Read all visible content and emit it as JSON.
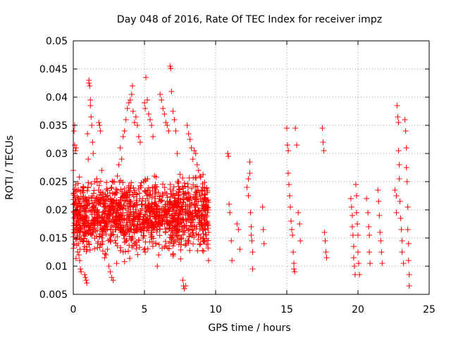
{
  "chart_data": {
    "type": "scatter",
    "title": "Day 048 of 2016, Rate Of TEC Index for receiver impz",
    "xlabel": "GPS time / hours",
    "ylabel": "ROTI / TECUs",
    "xlim": [
      0,
      25
    ],
    "ylim": [
      0.005,
      0.05
    ],
    "xticks": [
      "0",
      "5",
      "10",
      "15",
      "20",
      "25"
    ],
    "yticks": [
      "0.005",
      "0.01",
      "0.015",
      "0.02",
      "0.025",
      "0.03",
      "0.035",
      "0.04",
      "0.045",
      "0.05"
    ],
    "grid": true,
    "marker": "+",
    "color": "#ff0000",
    "series": [
      {
        "name": "ROTI",
        "points": [
          [
            0.0,
            0.027
          ],
          [
            0.05,
            0.034
          ],
          [
            0.1,
            0.035
          ],
          [
            0.1,
            0.0315
          ],
          [
            0.15,
            0.0305
          ],
          [
            0.2,
            0.031
          ],
          [
            0.2,
            0.02
          ],
          [
            0.25,
            0.018
          ],
          [
            0.3,
            0.0155
          ],
          [
            0.35,
            0.014
          ],
          [
            0.4,
            0.012
          ],
          [
            0.45,
            0.011
          ],
          [
            0.5,
            0.0095
          ],
          [
            0.55,
            0.009
          ],
          [
            0.6,
            0.02
          ],
          [
            0.65,
            0.022
          ],
          [
            0.7,
            0.024
          ],
          [
            0.75,
            0.013
          ],
          [
            0.8,
            0.0085
          ],
          [
            0.85,
            0.008
          ],
          [
            0.9,
            0.0075
          ],
          [
            0.95,
            0.007
          ],
          [
            1.0,
            0.0335
          ],
          [
            1.05,
            0.029
          ],
          [
            1.1,
            0.043
          ],
          [
            1.1,
            0.0425
          ],
          [
            1.15,
            0.042
          ],
          [
            1.2,
            0.0395
          ],
          [
            1.2,
            0.0385
          ],
          [
            1.25,
            0.0365
          ],
          [
            1.3,
            0.035
          ],
          [
            1.35,
            0.032
          ],
          [
            1.4,
            0.03
          ],
          [
            1.5,
            0.025
          ],
          [
            1.6,
            0.022
          ],
          [
            1.7,
            0.02
          ],
          [
            1.8,
            0.0355
          ],
          [
            1.85,
            0.035
          ],
          [
            1.9,
            0.034
          ],
          [
            2.0,
            0.027
          ],
          [
            2.1,
            0.022
          ],
          [
            2.2,
            0.0115
          ],
          [
            2.3,
            0.012
          ],
          [
            2.4,
            0.013
          ],
          [
            2.5,
            0.01
          ],
          [
            2.6,
            0.009
          ],
          [
            2.7,
            0.008
          ],
          [
            2.8,
            0.0075
          ],
          [
            2.9,
            0.02
          ],
          [
            3.0,
            0.023
          ],
          [
            3.1,
            0.026
          ],
          [
            3.2,
            0.028
          ],
          [
            3.3,
            0.031
          ],
          [
            3.4,
            0.029
          ],
          [
            3.5,
            0.033
          ],
          [
            3.6,
            0.034
          ],
          [
            3.7,
            0.036
          ],
          [
            3.8,
            0.038
          ],
          [
            3.9,
            0.039
          ],
          [
            4.0,
            0.0395
          ],
          [
            4.1,
            0.0405
          ],
          [
            4.15,
            0.042
          ],
          [
            4.2,
            0.0375
          ],
          [
            4.3,
            0.0355
          ],
          [
            4.4,
            0.0365
          ],
          [
            4.5,
            0.035
          ],
          [
            4.6,
            0.033
          ],
          [
            4.7,
            0.032
          ],
          [
            4.8,
            0.021
          ],
          [
            4.9,
            0.015
          ],
          [
            5.0,
            0.039
          ],
          [
            5.05,
            0.038
          ],
          [
            5.1,
            0.0435
          ],
          [
            5.2,
            0.0395
          ],
          [
            5.3,
            0.037
          ],
          [
            5.4,
            0.036
          ],
          [
            5.5,
            0.035
          ],
          [
            5.6,
            0.033
          ],
          [
            5.7,
            0.026
          ],
          [
            5.8,
            0.014
          ],
          [
            5.9,
            0.01
          ],
          [
            6.0,
            0.012
          ],
          [
            6.1,
            0.0405
          ],
          [
            6.2,
            0.0395
          ],
          [
            6.3,
            0.038
          ],
          [
            6.4,
            0.037
          ],
          [
            6.5,
            0.0355
          ],
          [
            6.6,
            0.035
          ],
          [
            6.7,
            0.034
          ],
          [
            6.8,
            0.0455
          ],
          [
            6.85,
            0.0451
          ],
          [
            6.9,
            0.041
          ],
          [
            7.0,
            0.0375
          ],
          [
            7.1,
            0.036
          ],
          [
            7.2,
            0.034
          ],
          [
            7.3,
            0.03
          ],
          [
            7.4,
            0.025
          ],
          [
            7.5,
            0.02
          ],
          [
            7.6,
            0.015
          ],
          [
            7.7,
            0.0075
          ],
          [
            7.75,
            0.0065
          ],
          [
            7.8,
            0.006
          ],
          [
            7.9,
            0.0065
          ],
          [
            8.0,
            0.035
          ],
          [
            8.1,
            0.0335
          ],
          [
            8.2,
            0.0325
          ],
          [
            8.3,
            0.031
          ],
          [
            8.4,
            0.029
          ],
          [
            8.5,
            0.0305
          ],
          [
            8.6,
            0.03
          ],
          [
            8.7,
            0.028
          ],
          [
            8.8,
            0.027
          ],
          [
            8.9,
            0.026
          ],
          [
            9.0,
            0.0235
          ],
          [
            9.1,
            0.024
          ],
          [
            9.2,
            0.022
          ],
          [
            9.3,
            0.02
          ],
          [
            9.4,
            0.018
          ],
          [
            9.5,
            0.016
          ],
          [
            9.5,
            0.011
          ],
          [
            10.85,
            0.03
          ],
          [
            10.9,
            0.0295
          ],
          [
            10.95,
            0.021
          ],
          [
            11.0,
            0.0195
          ],
          [
            11.1,
            0.0145
          ],
          [
            11.15,
            0.011
          ],
          [
            11.5,
            0.0175
          ],
          [
            11.6,
            0.0165
          ],
          [
            11.7,
            0.013
          ],
          [
            12.2,
            0.024
          ],
          [
            12.3,
            0.0255
          ],
          [
            12.3,
            0.0225
          ],
          [
            12.4,
            0.0285
          ],
          [
            12.4,
            0.0265
          ],
          [
            12.45,
            0.0195
          ],
          [
            12.5,
            0.017
          ],
          [
            12.5,
            0.0155
          ],
          [
            12.55,
            0.0145
          ],
          [
            12.6,
            0.0125
          ],
          [
            12.6,
            0.0095
          ],
          [
            13.3,
            0.0205
          ],
          [
            13.35,
            0.0165
          ],
          [
            13.4,
            0.014
          ],
          [
            15.0,
            0.0345
          ],
          [
            15.05,
            0.0315
          ],
          [
            15.1,
            0.0305
          ],
          [
            15.1,
            0.0265
          ],
          [
            15.15,
            0.0245
          ],
          [
            15.2,
            0.0225
          ],
          [
            15.25,
            0.0205
          ],
          [
            15.3,
            0.018
          ],
          [
            15.35,
            0.0165
          ],
          [
            15.4,
            0.0155
          ],
          [
            15.45,
            0.0125
          ],
          [
            15.5,
            0.0105
          ],
          [
            15.5,
            0.0095
          ],
          [
            15.55,
            0.009
          ],
          [
            15.6,
            0.0345
          ],
          [
            15.7,
            0.0315
          ],
          [
            15.8,
            0.0195
          ],
          [
            15.9,
            0.0175
          ],
          [
            15.95,
            0.0145
          ],
          [
            17.5,
            0.0345
          ],
          [
            17.55,
            0.032
          ],
          [
            17.6,
            0.0305
          ],
          [
            17.65,
            0.016
          ],
          [
            17.7,
            0.0145
          ],
          [
            17.75,
            0.0125
          ],
          [
            17.8,
            0.0115
          ],
          [
            19.5,
            0.022
          ],
          [
            19.55,
            0.0205
          ],
          [
            19.6,
            0.019
          ],
          [
            19.6,
            0.017
          ],
          [
            19.65,
            0.0155
          ],
          [
            19.7,
            0.0135
          ],
          [
            19.7,
            0.0115
          ],
          [
            19.75,
            0.01
          ],
          [
            19.8,
            0.0085
          ],
          [
            19.85,
            0.0245
          ],
          [
            19.9,
            0.0225
          ],
          [
            19.9,
            0.0195
          ],
          [
            19.95,
            0.0175
          ],
          [
            20.0,
            0.0155
          ],
          [
            20.0,
            0.0125
          ],
          [
            20.05,
            0.0105
          ],
          [
            20.1,
            0.0085
          ],
          [
            20.6,
            0.022
          ],
          [
            20.7,
            0.0195
          ],
          [
            20.75,
            0.017
          ],
          [
            20.8,
            0.0155
          ],
          [
            20.8,
            0.0125
          ],
          [
            20.85,
            0.0105
          ],
          [
            21.4,
            0.0235
          ],
          [
            21.45,
            0.0215
          ],
          [
            21.5,
            0.019
          ],
          [
            21.55,
            0.016
          ],
          [
            21.6,
            0.0145
          ],
          [
            21.65,
            0.0125
          ],
          [
            21.7,
            0.0105
          ],
          [
            22.6,
            0.0235
          ],
          [
            22.7,
            0.0225
          ],
          [
            22.7,
            0.0195
          ],
          [
            22.75,
            0.0385
          ],
          [
            22.8,
            0.0365
          ],
          [
            22.85,
            0.0355
          ],
          [
            22.85,
            0.0305
          ],
          [
            22.9,
            0.028
          ],
          [
            22.9,
            0.0255
          ],
          [
            22.95,
            0.0215
          ],
          [
            23.0,
            0.0185
          ],
          [
            23.05,
            0.0165
          ],
          [
            23.1,
            0.0145
          ],
          [
            23.1,
            0.0125
          ],
          [
            23.2,
            0.0105
          ],
          [
            23.3,
            0.036
          ],
          [
            23.35,
            0.034
          ],
          [
            23.4,
            0.031
          ],
          [
            23.4,
            0.0275
          ],
          [
            23.45,
            0.025
          ],
          [
            23.5,
            0.0205
          ],
          [
            23.5,
            0.0165
          ],
          [
            23.55,
            0.014
          ],
          [
            23.55,
            0.011
          ],
          [
            23.6,
            0.0085
          ],
          [
            23.6,
            0.0065
          ]
        ]
      }
    ]
  }
}
